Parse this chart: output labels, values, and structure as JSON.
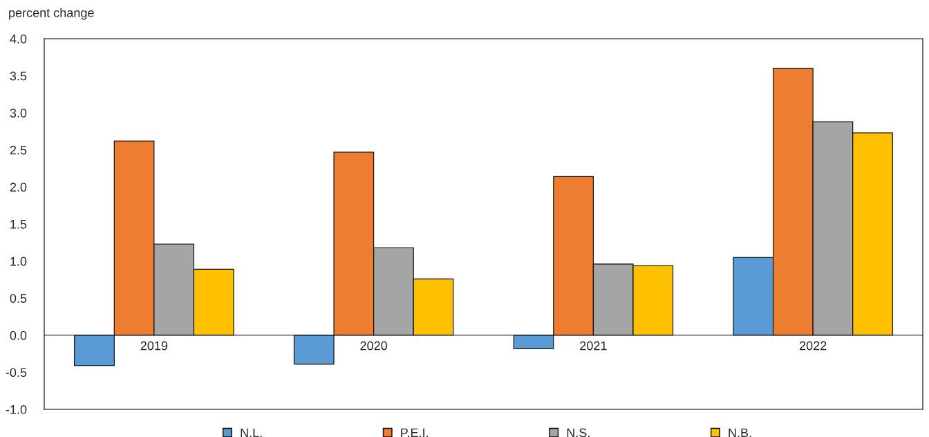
{
  "chart_data": {
    "type": "bar",
    "ylabel": "percent change",
    "categories": [
      "2019",
      "2020",
      "2021",
      "2022"
    ],
    "series": [
      {
        "name": "N.L.",
        "color": "#5b9bd5",
        "values": [
          -0.41,
          -0.39,
          -0.18,
          1.05
        ]
      },
      {
        "name": "P.E.I.",
        "color": "#ed7d31",
        "values": [
          2.62,
          2.47,
          2.14,
          3.6
        ]
      },
      {
        "name": "N.S.",
        "color": "#a5a5a5",
        "values": [
          1.23,
          1.18,
          0.96,
          2.88
        ]
      },
      {
        "name": "N.B.",
        "color": "#ffc000",
        "values": [
          0.89,
          0.76,
          0.94,
          2.73
        ]
      }
    ],
    "ylim": [
      -1.0,
      4.0
    ],
    "yticks": [
      {
        "value": -1,
        "label": "-1.0"
      },
      {
        "value": -0.5,
        "label": "-0.5"
      },
      {
        "value": 0,
        "label": "0.0"
      },
      {
        "value": 0.5,
        "label": "0.5"
      },
      {
        "value": 1,
        "label": "1.0"
      },
      {
        "value": 1.5,
        "label": "1.5"
      },
      {
        "value": 2,
        "label": "2.0"
      },
      {
        "value": 2.5,
        "label": "2.5"
      },
      {
        "value": 3,
        "label": "3.0"
      },
      {
        "value": 3.5,
        "label": "3.5"
      },
      {
        "value": 4,
        "label": "4.0"
      }
    ],
    "grid": false,
    "legend": "bottom"
  }
}
